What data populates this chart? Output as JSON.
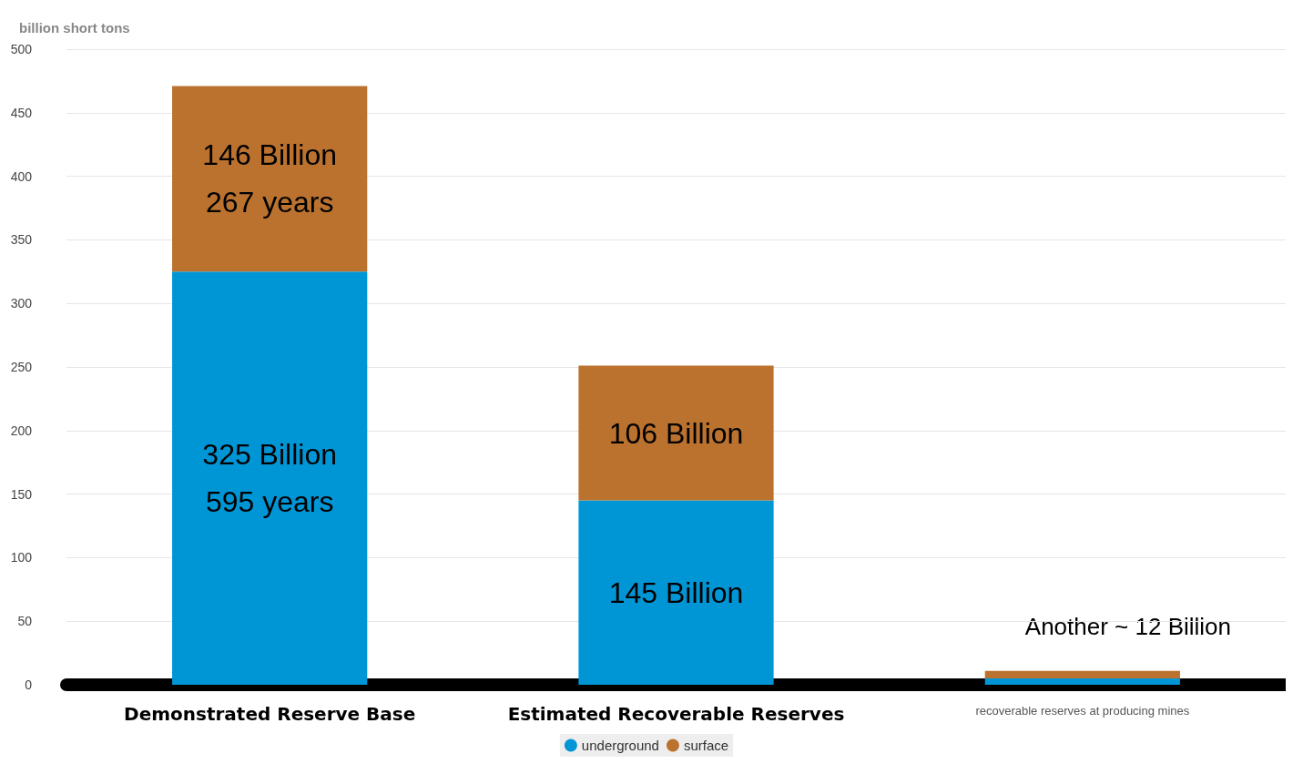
{
  "chart_data": {
    "type": "bar",
    "stacked": true,
    "ylabel": "billion short tons",
    "categories": [
      "Demonstrated Reserve Base",
      "Estimated Recoverable Reserves",
      "recoverable reserves at producing mines"
    ],
    "series": [
      {
        "name": "underground",
        "color": "#0096d6",
        "values": [
          325,
          145,
          5
        ],
        "value_labels": [
          "325 Billion\n595 years",
          "145 Billion",
          null
        ]
      },
      {
        "name": "surface",
        "color": "#bb722e",
        "values": [
          146,
          106,
          6
        ],
        "value_labels": [
          "146 Billion\n267 years",
          "106 Billion",
          null
        ]
      }
    ],
    "ylim": [
      0,
      500
    ],
    "yticks": [
      0,
      50,
      100,
      150,
      200,
      250,
      300,
      350,
      400,
      450,
      500
    ],
    "grid": "y",
    "legend": "bottom",
    "annotations": [
      "Another ~ 12 Billion"
    ]
  }
}
